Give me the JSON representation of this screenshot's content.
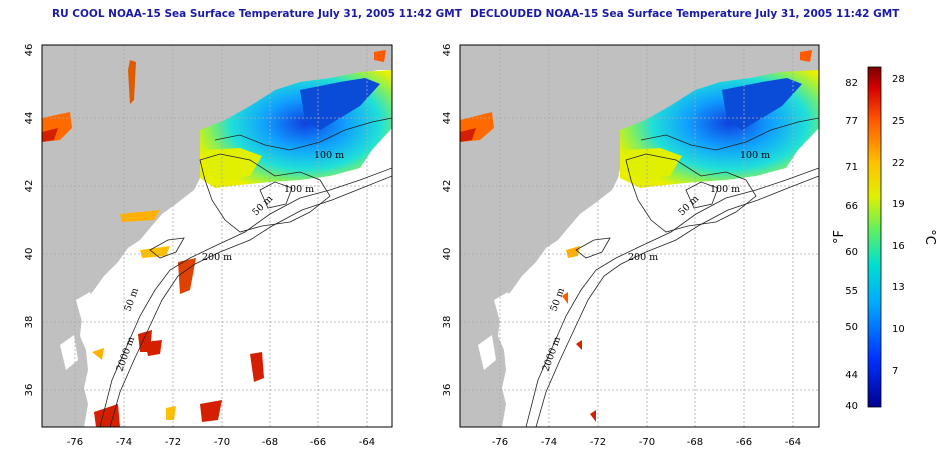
{
  "panels": [
    {
      "title": "RU COOL NOAA-15 Sea Surface Temperature July 31, 2005 11:42 GMT",
      "contour_labels": [
        "100 m",
        "100 m",
        "50 m",
        "200 m",
        "50 m",
        "2000 m"
      ]
    },
    {
      "title": "DECLOUDED NOAA-15 Sea Surface Temperature July 31, 2005 11:42 GMT",
      "contour_labels": [
        "100 m",
        "100 m",
        "50 m",
        "200 m",
        "50 m",
        "2000 m"
      ]
    }
  ],
  "axes": {
    "x_ticks": [
      "-76",
      "-74",
      "-72",
      "-70",
      "-68",
      "-66",
      "-64"
    ],
    "y_ticks": [
      "46",
      "44",
      "42",
      "40",
      "38",
      "36"
    ]
  },
  "colorbar": {
    "unit_f": "°F",
    "unit_c": "°C",
    "f_ticks": [
      "82",
      "77",
      "71",
      "66",
      "60",
      "55",
      "50",
      "44",
      "40"
    ],
    "c_ticks": [
      "28",
      "25",
      "22",
      "19",
      "16",
      "13",
      "10",
      "7"
    ]
  },
  "colors": {
    "land": "#c0c0c0",
    "title": "#1a1aa6",
    "warm": "#d42000",
    "cold": "#0a3fd6"
  }
}
